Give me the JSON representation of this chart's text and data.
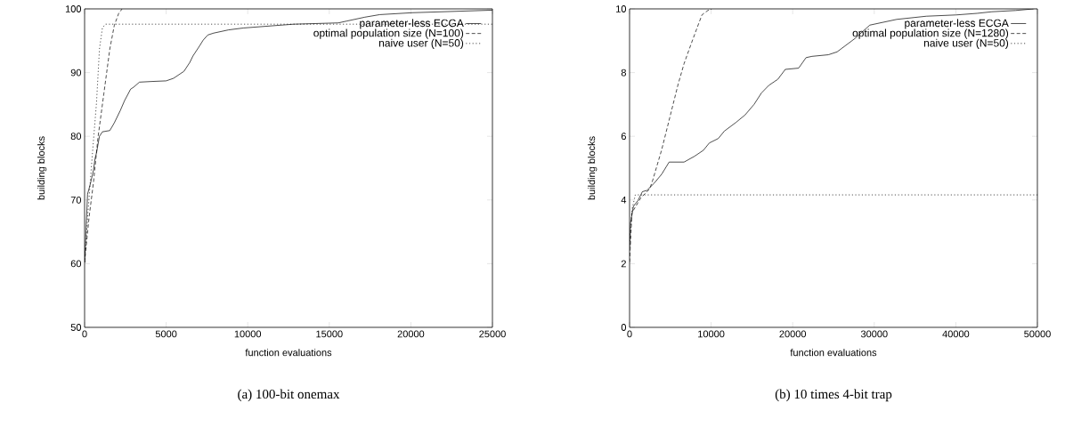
{
  "chart_data": [
    {
      "type": "line",
      "title": "(a) 100-bit onemax",
      "xlabel": "function evaluations",
      "ylabel": "building blocks",
      "xlim": [
        0,
        25000
      ],
      "ylim": [
        50,
        100
      ],
      "xticks": [
        0,
        5000,
        10000,
        15000,
        20000,
        25000
      ],
      "yticks": [
        50,
        60,
        70,
        80,
        90,
        100
      ],
      "legend": "top right",
      "grid": false,
      "series": [
        {
          "name": "parameter-less ECGA",
          "color": "#000000",
          "line_style": "solid",
          "x": [
            0,
            90,
            180,
            360,
            545,
            640,
            730,
            910,
            1090,
            1545,
            1820,
            2180,
            2450,
            2820,
            3000,
            3360,
            4090,
            5000,
            5450,
            6090,
            6450,
            6640,
            7000,
            7270,
            7550,
            7910,
            8820,
            9730,
            12820,
            15550,
            16090,
            17180,
            18090,
            20090,
            25000
          ],
          "values": [
            60.2,
            65.3,
            70.9,
            72.6,
            74.7,
            76.5,
            77.4,
            80,
            80.7,
            80.9,
            82.1,
            84,
            85.6,
            87.4,
            87.7,
            88.5,
            88.6,
            88.7,
            89.1,
            90.2,
            91.6,
            92.6,
            94,
            95.1,
            95.9,
            96.2,
            96.7,
            97,
            97.6,
            97.8,
            98.1,
            98.7,
            99.1,
            99.4,
            99.8
          ]
        },
        {
          "name": "optimal population size (N=100)",
          "color": "#000000",
          "line_style": "dashed",
          "x": [
            0,
            270,
            545,
            820,
            1180,
            1545,
            1820,
            2090,
            2300
          ],
          "values": [
            60.2,
            67.2,
            72.8,
            79.8,
            86.7,
            93.7,
            97.4,
            99.3,
            100
          ]
        },
        {
          "name": "naive user (N=50)",
          "color": "#000000",
          "line_style": "dotted",
          "x": [
            0,
            180,
            455,
            730,
            910,
            1090,
            1270,
            25000
          ],
          "values": [
            60.2,
            67.2,
            76.5,
            85.3,
            93.7,
            97,
            97.6,
            97.6
          ]
        }
      ]
    },
    {
      "type": "line",
      "title": "(b) 10 times 4-bit trap",
      "xlabel": "function evaluations",
      "ylabel": "building blocks",
      "xlim": [
        0,
        50000
      ],
      "ylim": [
        0,
        10
      ],
      "xticks": [
        0,
        10000,
        20000,
        30000,
        40000,
        50000
      ],
      "yticks": [
        0,
        2,
        4,
        6,
        8,
        10
      ],
      "legend": "top right",
      "grid": false,
      "series": [
        {
          "name": "parameter-less ECGA",
          "color": "#000000",
          "line_style": "solid",
          "x": [
            0,
            110,
            470,
            1020,
            1570,
            2120,
            3030,
            3940,
            4850,
            6680,
            7950,
            9050,
            9780,
            10880,
            11610,
            13070,
            14160,
            15260,
            16170,
            17080,
            18180,
            19090,
            20730,
            21640,
            22370,
            24380,
            25440,
            27630,
            29450,
            32740,
            36390,
            40040,
            42600,
            44420,
            47340,
            49530
          ],
          "values": [
            2.5,
            3.26,
            3.8,
            3.98,
            4.26,
            4.3,
            4.53,
            4.81,
            5.19,
            5.19,
            5.37,
            5.56,
            5.79,
            5.93,
            6.16,
            6.44,
            6.67,
            7,
            7.36,
            7.6,
            7.79,
            8.1,
            8.14,
            8.47,
            8.51,
            8.56,
            8.65,
            9.07,
            9.49,
            9.67,
            9.77,
            9.81,
            9.86,
            9.91,
            9.95,
            10
          ]
        },
        {
          "name": "optimal population size (N=1280)",
          "color": "#000000",
          "line_style": "dashed",
          "x": [
            0,
            290,
            1390,
            2480,
            2850,
            3940,
            5040,
            5950,
            6680,
            7590,
            8870,
            9600,
            10070
          ],
          "values": [
            2.05,
            3.6,
            4.07,
            4.35,
            4.63,
            5.58,
            6.7,
            7.63,
            8.28,
            8.93,
            9.81,
            9.95,
            10
          ]
        },
        {
          "name": "naive user (N=50)",
          "color": "#000000",
          "line_style": "dotted",
          "x": [
            0,
            300,
            700,
            50000
          ],
          "values": [
            2.6,
            3.7,
            4.16,
            4.16
          ]
        }
      ]
    }
  ]
}
